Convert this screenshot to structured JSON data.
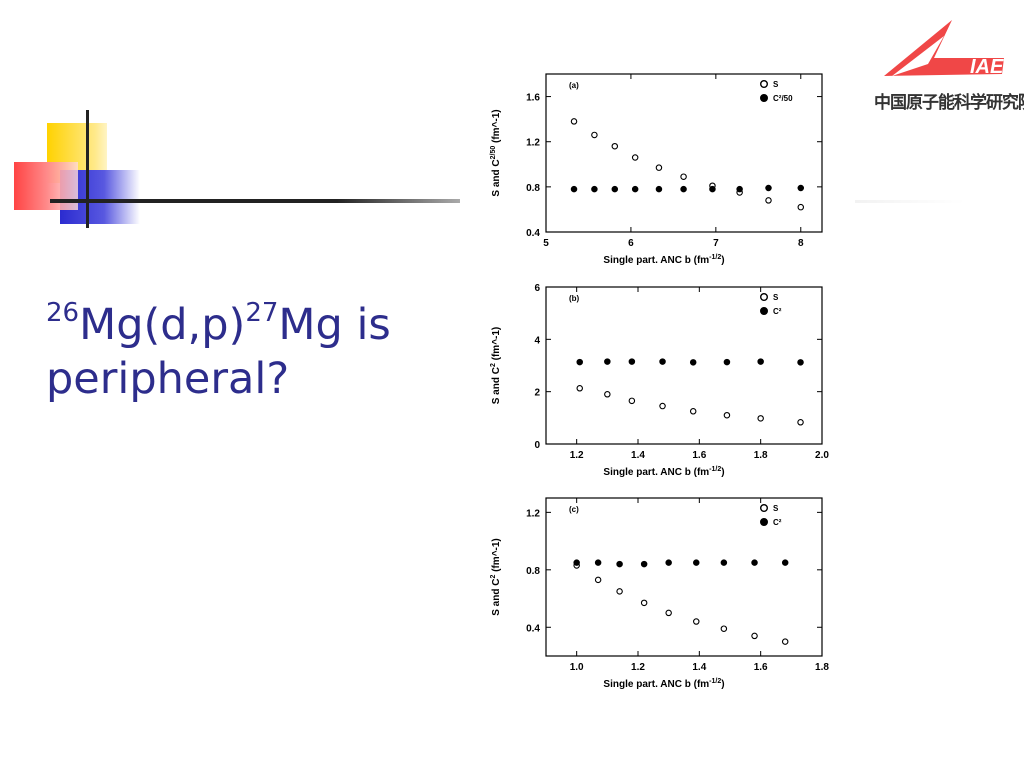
{
  "slide": {
    "title_pre": "26",
    "title_a": "Mg(d,p)",
    "title_sup2": "27",
    "title_b": "Mg is peripheral?"
  },
  "logo": {
    "mark": "IAE",
    "org": "中国原子能科学研究院"
  },
  "chart_data": [
    {
      "type": "scatter",
      "panel_label": "(a)",
      "xlabel": "Single part. ANC b  (fm^-1/2)",
      "ylabel": "S and C^2/50  (fm^-1)",
      "xlim": [
        5,
        8.25
      ],
      "ylim": [
        0.4,
        1.8
      ],
      "xticks": [
        5,
        6,
        7,
        8
      ],
      "yticks": [
        0.4,
        0.8,
        1.2,
        1.6
      ],
      "ytick_labels": [
        "0.4",
        "0.8",
        "1.2",
        "1.6"
      ],
      "xtick_labels": [
        "5",
        "6",
        "7",
        "8"
      ],
      "legend": [
        "S",
        "C²/50"
      ],
      "series": [
        {
          "name": "S",
          "marker": "open",
          "x": [
            5.33,
            5.57,
            5.81,
            6.05,
            6.33,
            6.62,
            6.96,
            7.28,
            7.62,
            8.0
          ],
          "y": [
            1.38,
            1.26,
            1.16,
            1.06,
            0.97,
            0.89,
            0.81,
            0.75,
            0.68,
            0.62
          ]
        },
        {
          "name": "C²/50",
          "marker": "filled",
          "x": [
            5.33,
            5.57,
            5.81,
            6.05,
            6.33,
            6.62,
            6.96,
            7.28,
            7.62,
            8.0
          ],
          "y": [
            0.78,
            0.78,
            0.78,
            0.78,
            0.78,
            0.78,
            0.78,
            0.78,
            0.79,
            0.79
          ]
        }
      ]
    },
    {
      "type": "scatter",
      "panel_label": "(b)",
      "xlabel": "Single part. ANC b  (fm^-1/2)",
      "ylabel": "S and C^2  (fm^-1)",
      "xlim": [
        1.1,
        2.0
      ],
      "ylim": [
        0,
        6
      ],
      "xticks": [
        1.2,
        1.4,
        1.6,
        1.8,
        2.0
      ],
      "yticks": [
        0,
        2,
        4,
        6
      ],
      "ytick_labels": [
        "0",
        "2",
        "4",
        "6"
      ],
      "xtick_labels": [
        "1.2",
        "1.4",
        "1.6",
        "1.8",
        "2.0"
      ],
      "legend": [
        "S",
        "C²"
      ],
      "series": [
        {
          "name": "S",
          "marker": "open",
          "x": [
            1.21,
            1.3,
            1.38,
            1.48,
            1.58,
            1.69,
            1.8,
            1.93
          ],
          "y": [
            2.13,
            1.9,
            1.65,
            1.45,
            1.25,
            1.1,
            0.98,
            0.83
          ]
        },
        {
          "name": "C²",
          "marker": "filled",
          "x": [
            1.21,
            1.3,
            1.38,
            1.48,
            1.58,
            1.69,
            1.8,
            1.93
          ],
          "y": [
            3.13,
            3.15,
            3.15,
            3.15,
            3.12,
            3.13,
            3.15,
            3.12
          ]
        }
      ]
    },
    {
      "type": "scatter",
      "panel_label": "(c)",
      "xlabel": "Single part. ANC b  (fm^-1/2)",
      "ylabel": "S and C^2  (fm^-1)",
      "xlim": [
        0.9,
        1.8
      ],
      "ylim": [
        0.2,
        1.3
      ],
      "xticks": [
        1.0,
        1.2,
        1.4,
        1.6,
        1.8
      ],
      "yticks": [
        0.4,
        0.8,
        1.2
      ],
      "ytick_labels": [
        "0.4",
        "0.8",
        "1.2"
      ],
      "xtick_labels": [
        "1.0",
        "1.2",
        "1.4",
        "1.6",
        "1.8"
      ],
      "legend": [
        "S",
        "C²"
      ],
      "series": [
        {
          "name": "S",
          "marker": "open",
          "x": [
            1.0,
            1.07,
            1.14,
            1.22,
            1.3,
            1.39,
            1.48,
            1.58,
            1.68
          ],
          "y": [
            0.83,
            0.73,
            0.65,
            0.57,
            0.5,
            0.44,
            0.39,
            0.34,
            0.3
          ]
        },
        {
          "name": "C²",
          "marker": "filled",
          "x": [
            1.0,
            1.07,
            1.14,
            1.22,
            1.3,
            1.39,
            1.48,
            1.58,
            1.68
          ],
          "y": [
            0.85,
            0.85,
            0.84,
            0.84,
            0.85,
            0.85,
            0.85,
            0.85,
            0.85
          ]
        }
      ]
    }
  ]
}
